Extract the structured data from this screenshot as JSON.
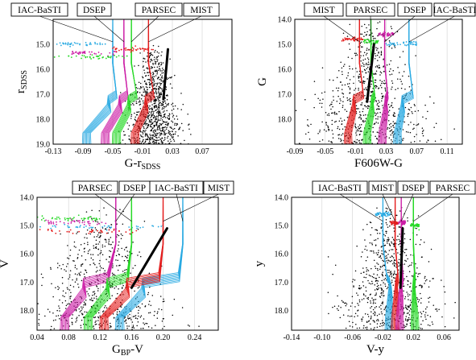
{
  "figure": {
    "panel_count": 4
  },
  "colors": {
    "IAC-BaSTI": "#29aae2",
    "DSEP": "#cc1fa6",
    "PARSEC": "#27d927",
    "MIST": "#e41e1e",
    "stars": "#000000",
    "fiducial": "#000000",
    "grid": "#c8c8c8"
  },
  "chart_data": [
    {
      "id": "panel-a",
      "type": "scatter",
      "xlabel": "G-r",
      "xlabel_sub": "SDSS",
      "ylabel": "r",
      "ylabel_sub": "SDSS",
      "xlim": [
        -0.13,
        0.11
      ],
      "ylim": [
        19.0,
        14.0
      ],
      "y_inverted": true,
      "xticks": [
        -0.13,
        -0.09,
        -0.05,
        -0.01,
        0.03,
        0.07
      ],
      "xtick_labels": [
        "-0.13",
        "-0.09",
        "-0.05",
        "-0.01",
        "0.03",
        "0.07"
      ],
      "yticks": [
        15.0,
        16.0,
        17.0,
        18.0,
        19.0
      ],
      "ytick_labels": [
        "15.0",
        "16.0",
        "17.0",
        "18.0",
        "19.0"
      ],
      "grid": "vertical",
      "label_placement": "top",
      "isochrone_labels": [
        {
          "model": "IAC-BaSTI",
          "text": "IAC-BaSTI"
        },
        {
          "model": "DSEP",
          "text": "DSEP"
        },
        {
          "model": "PARSEC",
          "text": "PARSEC"
        },
        {
          "model": "MIST",
          "text": "MIST"
        }
      ],
      "series": [
        {
          "model": "IAC-BaSTI",
          "ms_x": -0.085,
          "turnoff_x": -0.055,
          "rgb_x": -0.05,
          "sgb_end_x": -0.045,
          "hb_x": [
            -0.125,
            -0.06
          ],
          "hb_y": 15.0
        },
        {
          "model": "DSEP",
          "ms_x": -0.06,
          "turnoff_x": -0.04,
          "rgb_x": -0.035,
          "sgb_end_x": -0.03,
          "hb_x": [
            -0.105,
            -0.045
          ],
          "hb_y": 15.35
        },
        {
          "model": "PARSEC",
          "ms_x": -0.045,
          "turnoff_x": -0.028,
          "rgb_x": -0.025,
          "sgb_end_x": -0.018,
          "hb_x": [
            -0.13,
            -0.03
          ],
          "hb_y": 15.5
        },
        {
          "model": "MIST",
          "ms_x": -0.02,
          "turnoff_x": -0.005,
          "rgb_x": -0.002,
          "sgb_end_x": 0.005,
          "hb_x": [
            -0.05,
            0.005
          ],
          "hb_y": 15.2
        }
      ],
      "fiducial": {
        "x": [
          0.018,
          0.02,
          0.022,
          0.024
        ],
        "y": [
          17.2,
          16.5,
          15.9,
          15.2
        ]
      },
      "star_field": {
        "count": 900,
        "x_center": 0.005,
        "x_spread": 0.018,
        "y_min": 15.0,
        "y_max": 19.0
      }
    },
    {
      "id": "panel-b",
      "type": "scatter",
      "xlabel": "F606W-G",
      "xlabel_sub": "",
      "ylabel": "G",
      "ylabel_sub": "",
      "xlim": [
        -0.09,
        0.13
      ],
      "ylim": [
        19.0,
        14.0
      ],
      "y_inverted": true,
      "xticks": [
        -0.09,
        -0.05,
        -0.01,
        0.03,
        0.07,
        0.11
      ],
      "xtick_labels": [
        "-0.09",
        "-0.05",
        "-0.01",
        "0.03",
        "0.07",
        "0.11"
      ],
      "yticks": [
        14.0,
        15.0,
        16.0,
        17.0,
        18.0
      ],
      "ytick_labels": [
        "14.0",
        "15.0",
        "16.0",
        "17.0",
        "18.0"
      ],
      "grid": "vertical",
      "label_placement": "top",
      "isochrone_labels": [
        {
          "model": "MIST",
          "text": "MIST"
        },
        {
          "model": "PARSEC",
          "text": "PARSEC"
        },
        {
          "model": "DSEP",
          "text": "DSEP"
        },
        {
          "model": "IAC-BaSTI",
          "text": "IAC-BaSTI"
        }
      ],
      "series": [
        {
          "model": "MIST",
          "ms_x": -0.02,
          "turnoff_x": -0.012,
          "rgb_x": -0.005,
          "sgb_end_x": 0.0,
          "hb_x": [
            -0.03,
            0.0
          ],
          "hb_y": 14.8
        },
        {
          "model": "PARSEC",
          "ms_x": 0.005,
          "turnoff_x": 0.012,
          "rgb_x": 0.01,
          "sgb_end_x": 0.015,
          "hb_x": [
            0.0,
            0.02
          ],
          "hb_y": 14.9
        },
        {
          "model": "DSEP",
          "ms_x": 0.025,
          "turnoff_x": 0.03,
          "rgb_x": 0.028,
          "sgb_end_x": 0.032,
          "hb_x": [
            0.02,
            0.04
          ],
          "hb_y": 14.6
        },
        {
          "model": "IAC-BaSTI",
          "ms_x": 0.045,
          "turnoff_x": 0.052,
          "rgb_x": 0.06,
          "sgb_end_x": 0.065,
          "hb_x": [
            0.03,
            0.07
          ],
          "hb_y": 15.0
        }
      ],
      "fiducial": {
        "x": [
          0.005,
          0.008,
          0.011,
          0.014
        ],
        "y": [
          17.3,
          16.5,
          15.8,
          15.0
        ]
      },
      "star_field": {
        "count": 800,
        "x_center": 0.01,
        "x_spread": 0.035,
        "y_min": 14.0,
        "y_max": 19.0
      }
    },
    {
      "id": "panel-c",
      "type": "scatter",
      "xlabel": "G",
      "xlabel_sub": "BP",
      "xlabel_tail": "-V",
      "ylabel": "V",
      "ylabel_sub": "",
      "xlim": [
        0.04,
        0.27
      ],
      "ylim": [
        18.7,
        14.0
      ],
      "y_inverted": true,
      "xticks": [
        0.04,
        0.08,
        0.12,
        0.16,
        0.2,
        0.24
      ],
      "xtick_labels": [
        "0.04",
        "0.08",
        "0.12",
        "0.16",
        "0.20",
        "0.24"
      ],
      "yticks": [
        14.0,
        15.0,
        16.0,
        17.0,
        18.0
      ],
      "ytick_labels": [
        "14.0",
        "15.0",
        "16.0",
        "17.0",
        "18.0"
      ],
      "grid": "vertical",
      "label_placement": "top",
      "isochrone_labels": [
        {
          "model": "PARSEC",
          "text": "PARSEC"
        },
        {
          "model": "DSEP",
          "text": "DSEP"
        },
        {
          "model": "IAC-BaSTI",
          "text": "IAC-BaSTI"
        },
        {
          "model": "MIST",
          "text": "MIST"
        }
      ],
      "series": [
        {
          "model": "IAC-BaSTI",
          "ms_x": 0.145,
          "turnoff_x": 0.175,
          "rgb_x": 0.225,
          "sgb_end_x": 0.22,
          "hb_x": [
            0.04,
            0.2
          ],
          "hb_y": 15.05
        },
        {
          "model": "DSEP",
          "ms_x": 0.075,
          "turnoff_x": 0.1,
          "rgb_x": 0.14,
          "sgb_end_x": 0.13,
          "hb_x": [
            0.05,
            0.13
          ],
          "hb_y": 14.9
        },
        {
          "model": "PARSEC",
          "ms_x": 0.105,
          "turnoff_x": 0.13,
          "rgb_x": 0.16,
          "sgb_end_x": 0.155,
          "hb_x": [
            0.04,
            0.12
          ],
          "hb_y": 14.75
        },
        {
          "model": "MIST",
          "ms_x": 0.125,
          "turnoff_x": 0.155,
          "rgb_x": 0.2,
          "sgb_end_x": 0.195,
          "hb_x": [
            0.04,
            0.17
          ],
          "hb_y": 15.2
        }
      ],
      "fiducial": {
        "x": [
          0.16,
          0.175,
          0.19,
          0.205
        ],
        "y": [
          17.2,
          16.5,
          15.8,
          15.1
        ]
      },
      "star_field": {
        "count": 700,
        "x_center": 0.12,
        "x_spread": 0.04,
        "y_min": 14.3,
        "y_max": 18.7
      }
    },
    {
      "id": "panel-d",
      "type": "scatter",
      "xlabel": "V-y",
      "xlabel_sub": "",
      "ylabel": "y",
      "ylabel_sub": "",
      "xlim": [
        -0.14,
        0.08
      ],
      "ylim": [
        18.7,
        14.0
      ],
      "y_inverted": true,
      "xticks": [
        -0.14,
        -0.1,
        -0.06,
        -0.02,
        0.02,
        0.06
      ],
      "xtick_labels": [
        "-0.14",
        "-0.10",
        "-0.06",
        "-0.02",
        "0.02",
        "0.06"
      ],
      "yticks": [
        14.0,
        15.0,
        16.0,
        17.0,
        18.0
      ],
      "ytick_labels": [
        "14.0",
        "15.0",
        "16.0",
        "17.0",
        "18.0"
      ],
      "grid": "vertical",
      "label_placement": "top",
      "isochrone_labels": [
        {
          "model": "IAC-BaSTI",
          "text": "IAC-BaSTI"
        },
        {
          "model": "MIST",
          "text": "MIST"
        },
        {
          "model": "DSEP",
          "text": "DSEP"
        },
        {
          "model": "PARSEC",
          "text": "PARSEC"
        }
      ],
      "series": [
        {
          "model": "IAC-BaSTI",
          "ms_x": -0.012,
          "turnoff_x": -0.01,
          "rgb_x": -0.02,
          "sgb_end_x": -0.015,
          "hb_x": [
            -0.03,
            -0.01
          ],
          "hb_y": 14.6
        },
        {
          "model": "MIST",
          "ms_x": -0.004,
          "turnoff_x": -0.002,
          "rgb_x": -0.004,
          "sgb_end_x": 0.0,
          "hb_x": [
            -0.01,
            0.0
          ],
          "hb_y": 14.9
        },
        {
          "model": "DSEP",
          "ms_x": 0.002,
          "turnoff_x": 0.004,
          "rgb_x": 0.004,
          "sgb_end_x": 0.006,
          "hb_x": [
            0.0,
            0.01
          ],
          "hb_y": 14.9
        },
        {
          "model": "PARSEC",
          "ms_x": 0.022,
          "turnoff_x": 0.021,
          "rgb_x": 0.02,
          "sgb_end_x": 0.022,
          "hb_x": [
            0.016,
            0.028
          ],
          "hb_y": 15.0
        }
      ],
      "fiducial": {
        "x": [
          0.003,
          0.004,
          0.005,
          0.006
        ],
        "y": [
          17.2,
          16.5,
          15.8,
          15.1
        ]
      },
      "star_field": {
        "count": 800,
        "x_center": -0.01,
        "x_spread": 0.03,
        "y_min": 14.2,
        "y_max": 18.7
      }
    }
  ]
}
